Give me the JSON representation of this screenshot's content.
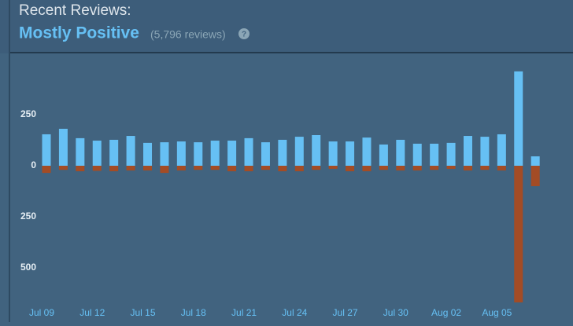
{
  "header": {
    "title": "Recent Reviews:",
    "rating": "Mostly Positive",
    "count": "(5,796 reviews)",
    "help": "?"
  },
  "chart_data": {
    "type": "bar",
    "categories": [
      "Jul 09",
      null,
      null,
      "Jul 12",
      null,
      null,
      "Jul 15",
      null,
      null,
      "Jul 18",
      null,
      null,
      "Jul 21",
      null,
      null,
      "Jul 24",
      null,
      null,
      "Jul 27",
      null,
      null,
      "Jul 30",
      null,
      null,
      "Aug 02",
      null,
      null,
      "Aug 05",
      null,
      null
    ],
    "series": [
      {
        "color": "#66c0f4",
        "values": [
          154,
          181,
          135,
          123,
          127,
          146,
          112,
          115,
          119,
          115,
          123,
          123,
          135,
          115,
          127,
          142,
          150,
          119,
          119,
          138,
          104,
          127,
          108,
          108,
          112,
          146,
          142,
          154,
          462,
          46
        ]
      },
      {
        "color": "#a34c25",
        "values": [
          -35,
          -20,
          -27,
          -25,
          -27,
          -23,
          -23,
          -35,
          -23,
          -20,
          -20,
          -27,
          -27,
          -20,
          -27,
          -27,
          -20,
          -15,
          -27,
          -27,
          -20,
          -23,
          -23,
          -20,
          -15,
          -23,
          -20,
          -23,
          -669,
          -100
        ]
      }
    ],
    "ylim": [
      -700,
      550
    ],
    "yticks": [
      {
        "value": -500,
        "label": "500"
      },
      {
        "value": -250,
        "label": "250"
      },
      0,
      250
    ]
  }
}
